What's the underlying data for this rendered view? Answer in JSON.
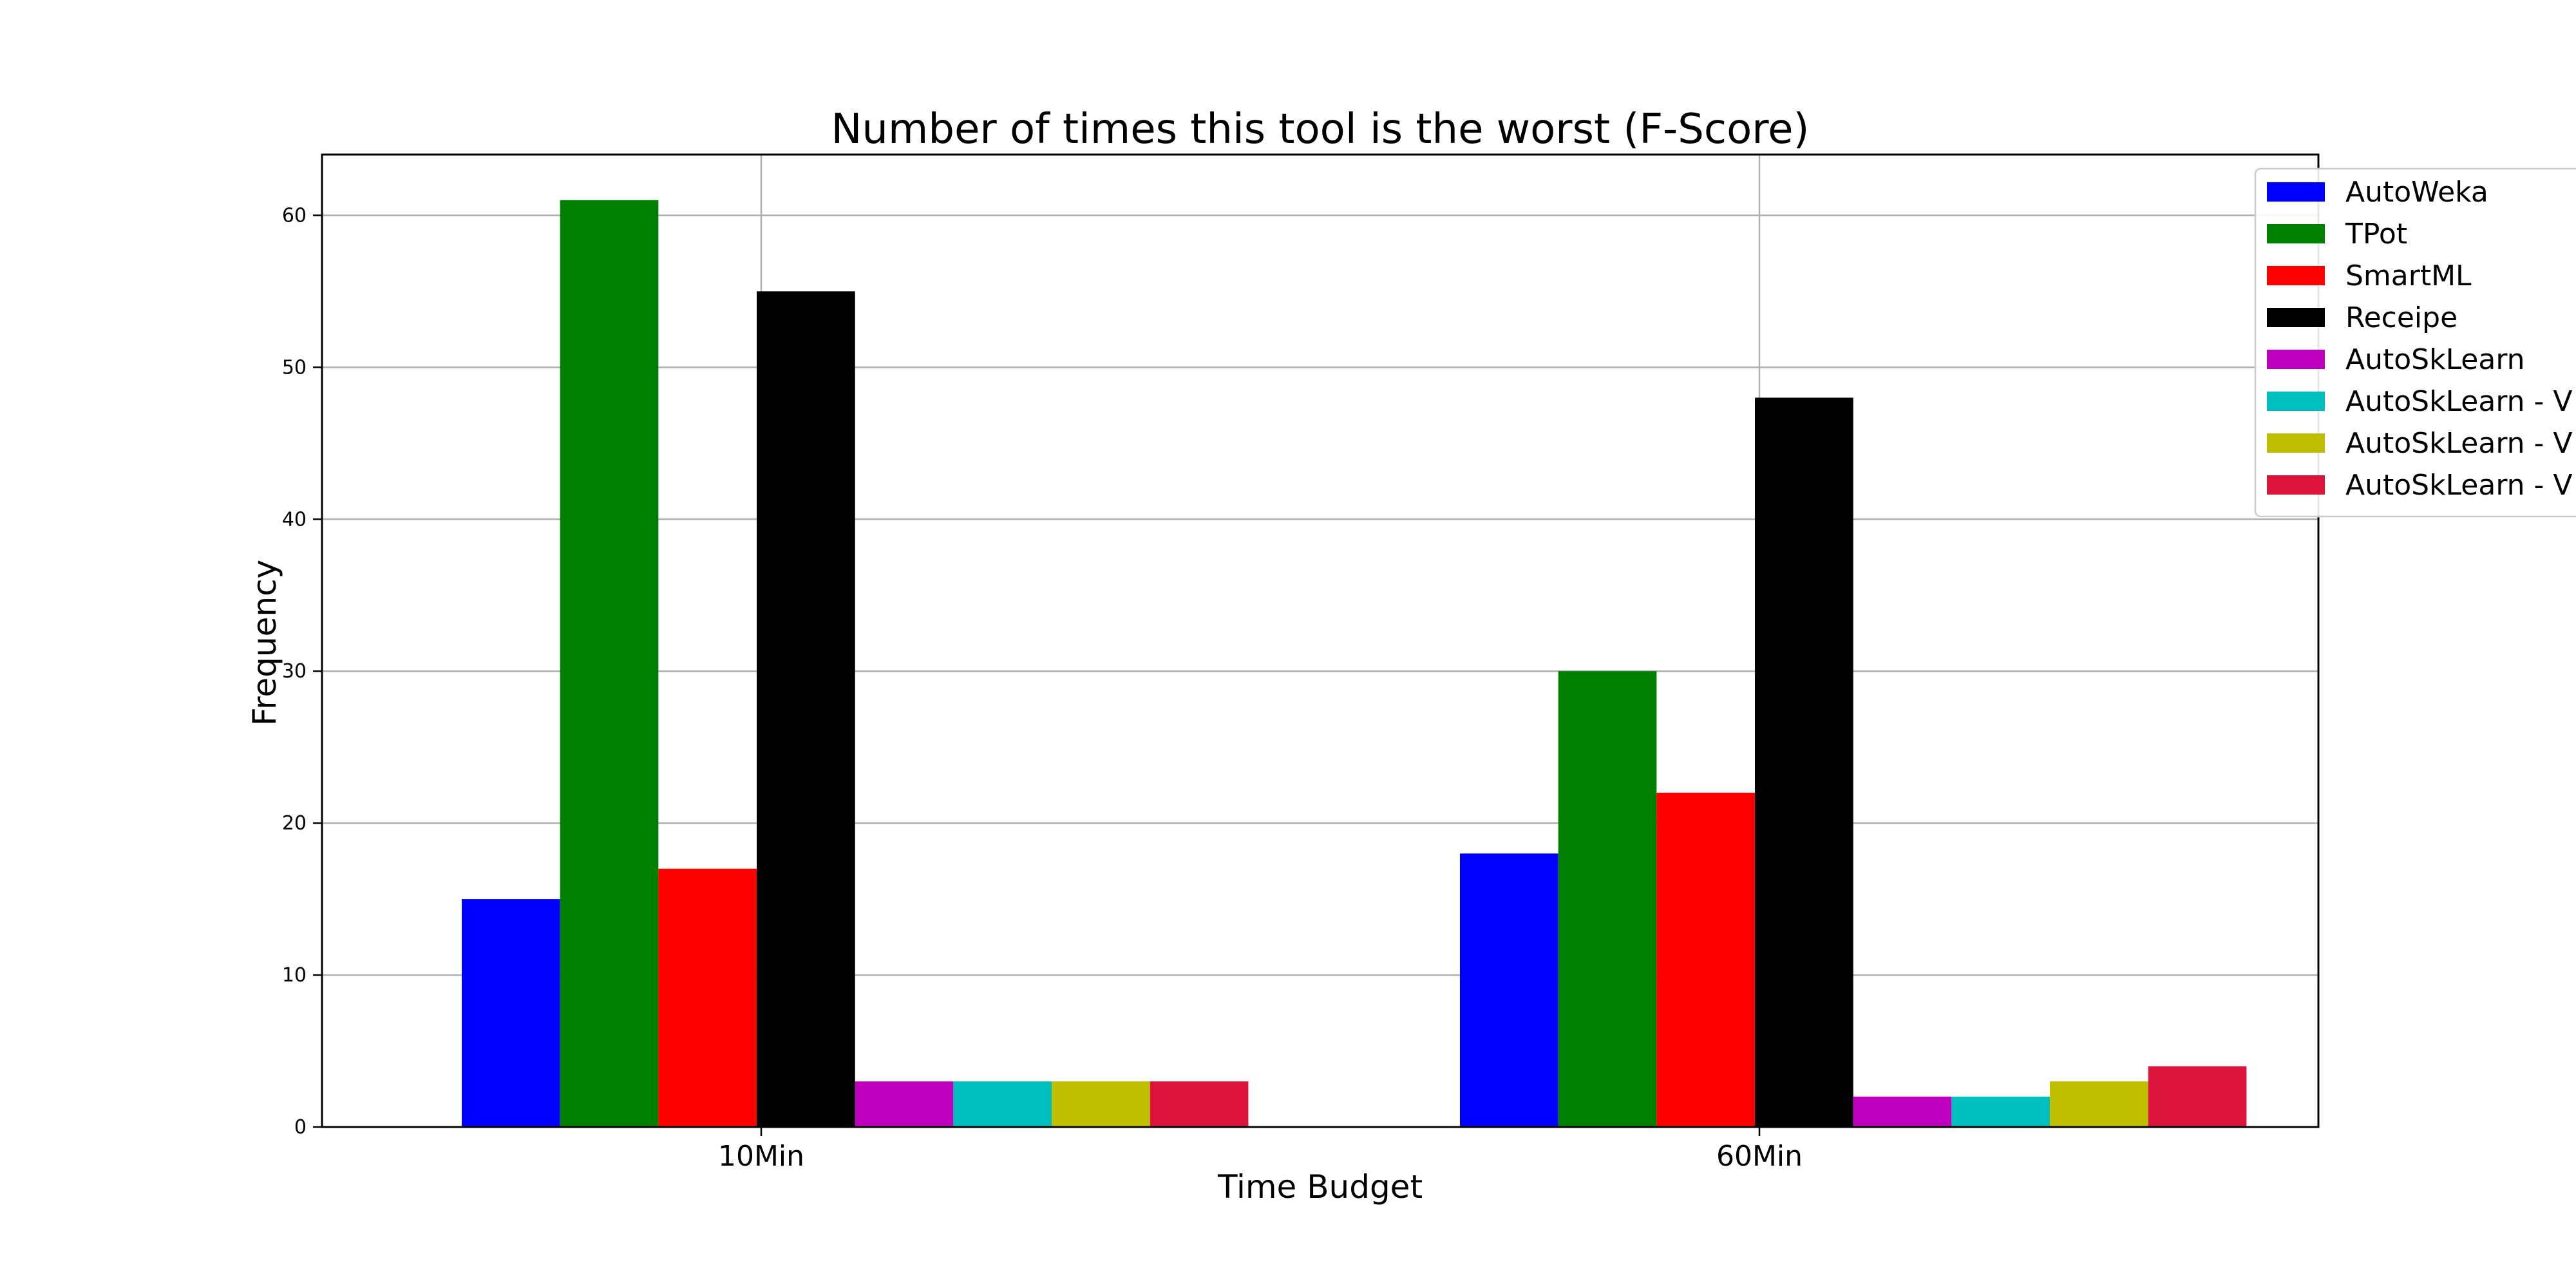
{
  "chart_data": {
    "type": "bar",
    "title": "Number of times this tool is the worst (F-Score)",
    "xlabel": "Time Budget",
    "ylabel": "Frequency",
    "categories": [
      "10Min",
      "60Min"
    ],
    "ylim": [
      0,
      64
    ],
    "yticks": [
      0,
      10,
      20,
      30,
      40,
      50,
      60
    ],
    "grid": true,
    "legend_position": "top-right",
    "series": [
      {
        "name": "AutoWeka",
        "color": "#0000ff",
        "values": [
          15,
          18
        ]
      },
      {
        "name": "TPot",
        "color": "#008000",
        "values": [
          61,
          30
        ]
      },
      {
        "name": "SmartML",
        "color": "#ff0000",
        "values": [
          17,
          22
        ]
      },
      {
        "name": "Receipe",
        "color": "#000000",
        "values": [
          55,
          48
        ]
      },
      {
        "name": "AutoSkLearn",
        "color": "#bf00bf",
        "values": [
          3,
          2
        ]
      },
      {
        "name": "AutoSkLearn - V",
        "color": "#00bfbf",
        "values": [
          3,
          2
        ]
      },
      {
        "name": "AutoSkLearn - V",
        "color": "#bfbf00",
        "values": [
          3,
          3
        ]
      },
      {
        "name": "AutoSkLearn - V",
        "color": "#dc143c",
        "values": [
          3,
          4
        ]
      }
    ]
  }
}
